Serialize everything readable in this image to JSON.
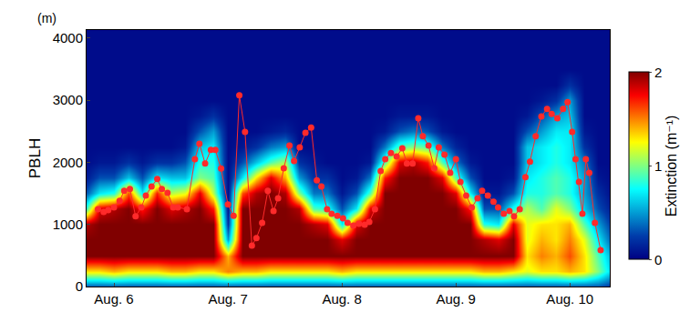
{
  "chart_data": {
    "type": "heatmap",
    "ylabel": "PBLH",
    "ylabel_unit": "(m)",
    "colorbar_title": "Extinction (m⁻¹)",
    "xlim": [
      -0.24,
      4.35
    ],
    "xticks": [
      {
        "value": 0,
        "label": "Aug. 6"
      },
      {
        "value": 1,
        "label": "Aug. 7"
      },
      {
        "value": 2,
        "label": "Aug. 8"
      },
      {
        "value": 3,
        "label": "Aug. 9"
      },
      {
        "value": 4,
        "label": "Aug. 10"
      }
    ],
    "ylim": [
      0,
      4130
    ],
    "yticks": [
      0,
      1000,
      2000,
      3000,
      4000
    ],
    "zlim": [
      0,
      2
    ],
    "zticks": [
      0,
      1,
      2
    ],
    "x": [
      -0.25,
      -0.125,
      0,
      0.125,
      0.25,
      0.375,
      0.5,
      0.625,
      0.75,
      0.875,
      1,
      1.125,
      1.25,
      1.375,
      1.5,
      1.625,
      1.75,
      1.875,
      2,
      2.125,
      2.25,
      2.375,
      2.5,
      2.625,
      2.75,
      2.875,
      3,
      3.125,
      3.25,
      3.375,
      3.5,
      3.625,
      3.75,
      3.875,
      4,
      4.125,
      4.25,
      4.375
    ],
    "y": [
      0,
      250,
      500,
      750,
      1000,
      1250,
      1500,
      1750,
      2000,
      2250,
      2500,
      2750,
      3000,
      3250,
      3500,
      3750,
      4000
    ],
    "z": [
      [
        0.3,
        1.3,
        2,
        2,
        1.9,
        0.8,
        0.3,
        0.1,
        0.05,
        0.05,
        0.05,
        0.05,
        0.05,
        0.05,
        0.05,
        0.05,
        0.05
      ],
      [
        0.3,
        1.3,
        2,
        2,
        2,
        1.8,
        0.7,
        0.3,
        0.1,
        0.05,
        0.05,
        0.05,
        0.05,
        0.05,
        0.05,
        0.05,
        0.05
      ],
      [
        0.3,
        1.4,
        2,
        2,
        2,
        1.9,
        0.8,
        0.3,
        0.1,
        0.05,
        0.05,
        0.05,
        0.05,
        0.05,
        0.05,
        0.05,
        0.05
      ],
      [
        0.3,
        1.3,
        2,
        2,
        2,
        2,
        1.6,
        0.6,
        0.2,
        0.05,
        0.05,
        0.05,
        0.05,
        0.05,
        0.05,
        0.05,
        0.05
      ],
      [
        0.3,
        1.3,
        2,
        2,
        2,
        1.7,
        0.7,
        0.3,
        0.1,
        0.05,
        0.05,
        0.05,
        0.05,
        0.05,
        0.05,
        0.05,
        0.05
      ],
      [
        0.3,
        1.3,
        2,
        2,
        2,
        2,
        1.7,
        0.7,
        0.2,
        0.05,
        0.05,
        0.05,
        0.05,
        0.05,
        0.05,
        0.05,
        0.05
      ],
      [
        0.3,
        1.4,
        2,
        2,
        2,
        1.8,
        1.1,
        0.6,
        0.2,
        0.05,
        0.05,
        0.05,
        0.05,
        0.05,
        0.05,
        0.05,
        0.05
      ],
      [
        0.3,
        1.4,
        2,
        2,
        2,
        1.9,
        1.2,
        0.6,
        0.3,
        0.1,
        0.05,
        0.05,
        0.05,
        0.05,
        0.05,
        0.05,
        0.05
      ],
      [
        0.3,
        1.3,
        2,
        2,
        2,
        2,
        1.8,
        1,
        0.8,
        0.6,
        0.3,
        0.1,
        0.05,
        0.05,
        0.05,
        0.05,
        0.05
      ],
      [
        0.3,
        1.3,
        2,
        2,
        2,
        1.7,
        1.1,
        0.9,
        0.8,
        0.7,
        0.5,
        0.2,
        0.05,
        0.05,
        0.05,
        0.05,
        0.05
      ],
      [
        0.3,
        1.5,
        1.4,
        0.5,
        0.2,
        0.1,
        0.05,
        0.05,
        0.05,
        0.05,
        0.05,
        0.05,
        0.05,
        0.05,
        0.05,
        0.05,
        0.05
      ],
      [
        0.3,
        1.4,
        2,
        2,
        2,
        2,
        1.6,
        0.7,
        0.3,
        0.1,
        0.05,
        0.05,
        0.05,
        0.05,
        0.05,
        0.05,
        0.05
      ],
      [
        0.3,
        1.4,
        2,
        2,
        2,
        2,
        1.9,
        1.3,
        0.6,
        0.2,
        0.05,
        0.05,
        0.05,
        0.05,
        0.05,
        0.05,
        0.05
      ],
      [
        0.3,
        1.3,
        2,
        2,
        2,
        2,
        2,
        1.8,
        0.9,
        0.4,
        0.1,
        0.05,
        0.05,
        0.05,
        0.05,
        0.05,
        0.05
      ],
      [
        0.3,
        1.3,
        2,
        2,
        2,
        2,
        1.9,
        1.4,
        1.1,
        0.5,
        0.15,
        0.05,
        0.05,
        0.05,
        0.05,
        0.05,
        0.05
      ],
      [
        0.3,
        1.3,
        2,
        2,
        2,
        1.9,
        1,
        0.5,
        0.2,
        0.05,
        0.05,
        0.05,
        0.05,
        0.05,
        0.05,
        0.05,
        0.05
      ],
      [
        0.3,
        1.3,
        2,
        2,
        1.9,
        0.9,
        0.4,
        0.2,
        0.1,
        0.05,
        0.05,
        0.05,
        0.05,
        0.05,
        0.05,
        0.05,
        0.05
      ],
      [
        0.3,
        1.3,
        2,
        2,
        1.8,
        0.8,
        0.4,
        0.2,
        0.05,
        0.05,
        0.05,
        0.05,
        0.05,
        0.05,
        0.05,
        0.05,
        0.05
      ],
      [
        0.3,
        1.4,
        2,
        1.8,
        0.7,
        0.3,
        0.1,
        0.05,
        0.05,
        0.05,
        0.05,
        0.05,
        0.05,
        0.05,
        0.05,
        0.05,
        0.05
      ],
      [
        0.3,
        1.3,
        2,
        2,
        1.8,
        0.7,
        0.3,
        0.1,
        0.05,
        0.05,
        0.05,
        0.05,
        0.05,
        0.05,
        0.05,
        0.05,
        0.05
      ],
      [
        0.3,
        1.3,
        2,
        2,
        2,
        1.8,
        0.9,
        0.4,
        0.1,
        0.05,
        0.05,
        0.05,
        0.05,
        0.05,
        0.05,
        0.05,
        0.05
      ],
      [
        0.3,
        1.3,
        2,
        2,
        2,
        2,
        2,
        1.7,
        0.9,
        0.4,
        0.1,
        0.05,
        0.05,
        0.05,
        0.05,
        0.05,
        0.05
      ],
      [
        0.3,
        1.3,
        2,
        2,
        2,
        2,
        2,
        2,
        1.8,
        0.9,
        0.3,
        0.1,
        0.05,
        0.05,
        0.05,
        0.05,
        0.05
      ],
      [
        0.3,
        1.3,
        2,
        2,
        2,
        2,
        2,
        2,
        1.9,
        1,
        0.4,
        0.1,
        0.05,
        0.05,
        0.05,
        0.05,
        0.05
      ],
      [
        0.3,
        1.3,
        2,
        2,
        2,
        2,
        2,
        2,
        1.7,
        0.9,
        0.3,
        0.1,
        0.05,
        0.05,
        0.05,
        0.05,
        0.05
      ],
      [
        0.3,
        1.3,
        2,
        2,
        2,
        2,
        2,
        1.8,
        0.9,
        0.4,
        0.1,
        0.05,
        0.05,
        0.05,
        0.05,
        0.05,
        0.05
      ],
      [
        0.3,
        1.3,
        2,
        2,
        2,
        2,
        1.8,
        0.9,
        0.4,
        0.15,
        0.05,
        0.05,
        0.05,
        0.05,
        0.05,
        0.05,
        0.05
      ],
      [
        0.3,
        1.3,
        2,
        2,
        2,
        1.7,
        0.7,
        0.3,
        0.1,
        0.05,
        0.05,
        0.05,
        0.05,
        0.05,
        0.05,
        0.05,
        0.05
      ],
      [
        0.3,
        1.4,
        2,
        1.9,
        0.8,
        0.3,
        0.1,
        0.05,
        0.05,
        0.05,
        0.05,
        0.05,
        0.05,
        0.05,
        0.05,
        0.05,
        0.05
      ],
      [
        0.3,
        1.4,
        2,
        1.8,
        0.7,
        0.3,
        0.1,
        0.05,
        0.05,
        0.05,
        0.05,
        0.05,
        0.05,
        0.05,
        0.05,
        0.05,
        0.05
      ],
      [
        0.3,
        1.3,
        2,
        2,
        1.8,
        0.8,
        0.3,
        0.1,
        0.05,
        0.05,
        0.05,
        0.05,
        0.05,
        0.05,
        0.05,
        0.05,
        0.05
      ],
      [
        0.3,
        1.2,
        1.3,
        1.2,
        1.2,
        1.1,
        0.8,
        0.7,
        0.6,
        0.6,
        0.3,
        0.1,
        0.05,
        0.05,
        0.05,
        0.05,
        0.05
      ],
      [
        0.3,
        1.3,
        1.5,
        1.4,
        1.3,
        0.9,
        0.8,
        0.8,
        0.7,
        0.7,
        0.5,
        0.3,
        0.1,
        0.05,
        0.05,
        0.05,
        0.05
      ],
      [
        0.3,
        1.3,
        1.4,
        1.3,
        1.3,
        1.2,
        0.9,
        0.9,
        0.8,
        0.8,
        0.7,
        0.5,
        0.2,
        0.05,
        0.05,
        0.05,
        0.05
      ],
      [
        0.3,
        1.4,
        1.6,
        1.5,
        1.4,
        1,
        0.8,
        0.8,
        0.7,
        0.7,
        0.7,
        0.6,
        0.5,
        0.2,
        0.05,
        0.05,
        0.05
      ],
      [
        0.3,
        1.3,
        1.3,
        1.2,
        0.9,
        0.6,
        0.5,
        0.5,
        0.4,
        0.2,
        0.1,
        0.05,
        0.05,
        0.05,
        0.05,
        0.05,
        0.05
      ],
      [
        0.3,
        1,
        0.9,
        0.7,
        0.5,
        0.3,
        0.2,
        0.1,
        0.05,
        0.05,
        0.05,
        0.05,
        0.05,
        0.05,
        0.05,
        0.05,
        0.05
      ],
      [
        0.2,
        0.6,
        0.5,
        0.3,
        0.2,
        0.1,
        0.05,
        0.05,
        0.05,
        0.05,
        0.05,
        0.05,
        0.05,
        0.05,
        0.05,
        0.05,
        0.05
      ]
    ],
    "series": [
      {
        "type": "line",
        "color": "#ff2a2a",
        "marker": "circle",
        "x": [
          -0.14,
          -0.09,
          -0.05,
          0,
          0.05,
          0.09,
          0.14,
          0.19,
          0.24,
          0.28,
          0.33,
          0.38,
          0.42,
          0.47,
          0.52,
          0.56,
          0.64,
          0.71,
          0.75,
          0.8,
          0.85,
          0.89,
          0.94,
          1,
          1.05,
          1.1,
          1.15,
          1.21,
          1.25,
          1.3,
          1.35,
          1.4,
          1.44,
          1.49,
          1.54,
          1.58,
          1.63,
          1.68,
          1.73,
          1.78,
          1.82,
          1.87,
          1.91,
          1.96,
          2.01,
          2.05,
          2.1,
          2.15,
          2.2,
          2.24,
          2.29,
          2.34,
          2.38,
          2.43,
          2.48,
          2.53,
          2.57,
          2.62,
          2.67,
          2.71,
          2.76,
          2.81,
          2.85,
          2.9,
          2.95,
          3,
          3.04,
          3.09,
          3.14,
          3.19,
          3.23,
          3.28,
          3.33,
          3.37,
          3.42,
          3.47,
          3.51,
          3.56,
          3.61,
          3.65,
          3.7,
          3.75,
          3.8,
          3.84,
          3.89,
          3.94,
          3.98,
          4.02,
          4.05,
          4.08,
          4.11,
          4.14,
          4.17,
          4.22,
          4.27
        ],
        "values": [
          1245,
          1200,
          1230,
          1275,
          1380,
          1540,
          1570,
          1130,
          1275,
          1465,
          1610,
          1730,
          1570,
          1510,
          1275,
          1275,
          1245,
          2050,
          2300,
          1980,
          2200,
          2200,
          1900,
          1320,
          1140,
          3080,
          2490,
          660,
          780,
          1025,
          1540,
          1215,
          1420,
          1905,
          2270,
          2020,
          2240,
          2475,
          2560,
          1710,
          1610,
          1245,
          1170,
          1140,
          1100,
          1025,
          980,
          1010,
          995,
          1040,
          1245,
          1860,
          2050,
          2150,
          2095,
          2225,
          1980,
          1980,
          2710,
          2420,
          2270,
          1905,
          2240,
          2125,
          1830,
          2050,
          1685,
          1465,
          1275,
          1420,
          1540,
          1465,
          1365,
          1275,
          1170,
          1215,
          1130,
          1245,
          1760,
          2010,
          2420,
          2740,
          2860,
          2780,
          2710,
          2860,
          2970,
          2490,
          2050,
          1685,
          1170,
          2050,
          1830,
          1025,
          585
        ]
      }
    ]
  }
}
